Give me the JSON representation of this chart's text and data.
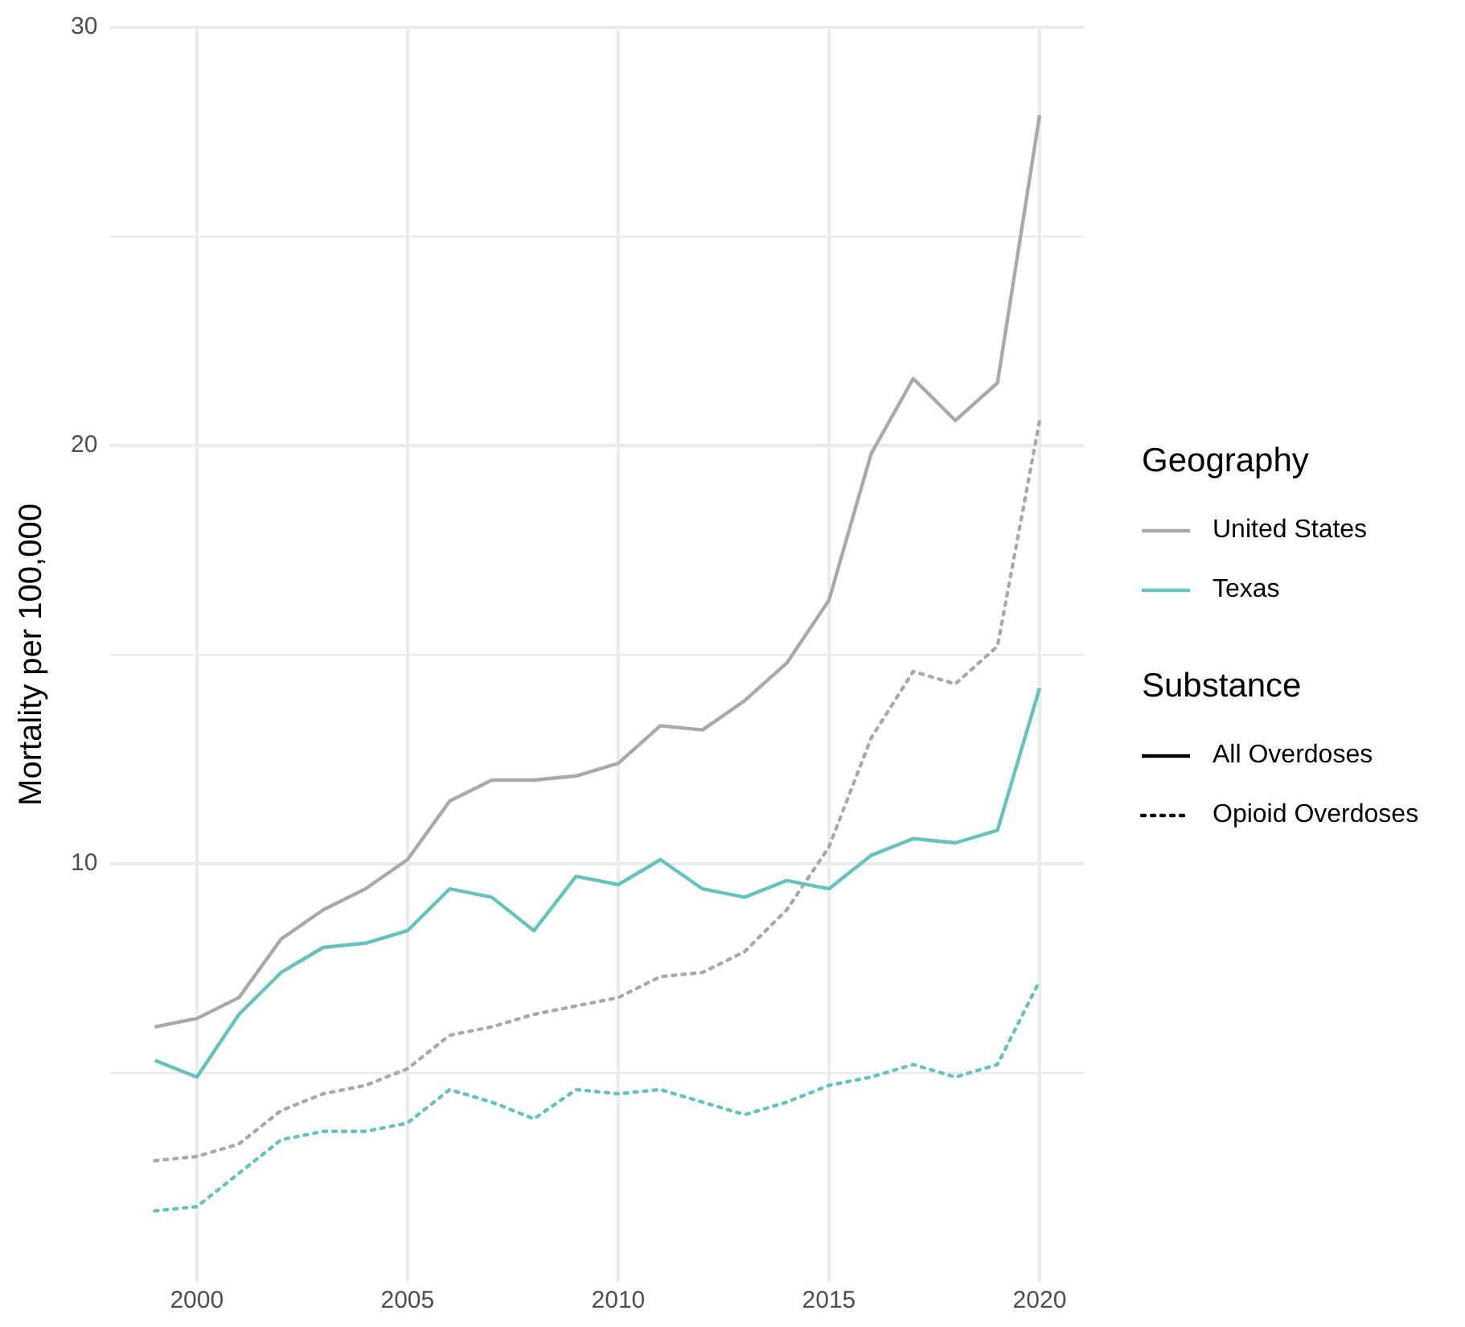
{
  "chart_data": {
    "type": "line",
    "ylabel": "Mortality per 100,000",
    "legend_title": [
      "Geography",
      "Substance"
    ],
    "legend": "right",
    "grid": true,
    "marker": "none",
    "x": [
      1999,
      2000,
      2001,
      2002,
      2003,
      2004,
      2005,
      2006,
      2007,
      2008,
      2009,
      2010,
      2011,
      2012,
      2013,
      2014,
      2015,
      2016,
      2017,
      2018,
      2019,
      2020
    ],
    "xlim": [
      1997.95,
      2021.05
    ],
    "xticks": [
      2000,
      2005,
      2010,
      2015,
      2020
    ],
    "ylim": [
      0,
      30
    ],
    "yticks": [
      {
        "value": 5,
        "label": null
      },
      10,
      {
        "value": 15,
        "label": null
      },
      20,
      {
        "value": 25,
        "label": null
      },
      30
    ],
    "series": [
      {
        "name": "United States",
        "color": "#a9a9a9",
        "line_style": "solid",
        "values": [
          6.1,
          6.3,
          6.8,
          8.2,
          8.9,
          9.4,
          10.1,
          11.5,
          12.0,
          12.0,
          12.1,
          12.4,
          13.3,
          13.2,
          13.9,
          14.8,
          16.3,
          19.8,
          21.6,
          20.6,
          21.5,
          27.9
        ]
      },
      {
        "name": "Texas",
        "color": "#66c2bf",
        "line_style": "solid",
        "values": [
          5.3,
          4.9,
          6.4,
          7.4,
          8.0,
          8.1,
          8.4,
          9.4,
          9.2,
          8.4,
          9.7,
          9.5,
          10.1,
          9.4,
          9.2,
          9.6,
          9.4,
          10.2,
          10.6,
          10.5,
          10.8,
          14.2
        ]
      },
      {
        "color": "#a9a9a9",
        "line_style": "dotted",
        "values": [
          2.9,
          3.0,
          3.3,
          4.1,
          4.5,
          4.7,
          5.1,
          5.9,
          6.1,
          6.4,
          6.6,
          6.8,
          7.3,
          7.4,
          7.9,
          8.9,
          10.4,
          13.0,
          14.6,
          14.3,
          15.2,
          20.6
        ]
      },
      {
        "color": "#66c2bf",
        "line_style": "dotted",
        "values": [
          1.7,
          1.8,
          2.6,
          3.4,
          3.6,
          3.6,
          3.8,
          4.6,
          4.3,
          3.9,
          4.6,
          4.5,
          4.6,
          4.3,
          4.0,
          4.3,
          4.7,
          4.9,
          5.2,
          4.9,
          5.2,
          7.2
        ]
      }
    ],
    "annotations": [
      "All Overdoses",
      "Opioid Overdoses"
    ]
  }
}
